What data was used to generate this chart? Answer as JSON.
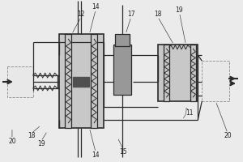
{
  "bg_color": "#ebebeb",
  "line_color": "#2a2a2a",
  "fill_light": "#c8c8c8",
  "fill_mid": "#989898",
  "fill_dark": "#505050",
  "fill_white": "#e8e8e8",
  "coil_color": "#3a3a3a",
  "label_fs": 5.5,
  "lw_thick": 1.2,
  "lw_med": 0.9,
  "lw_thin": 0.6
}
